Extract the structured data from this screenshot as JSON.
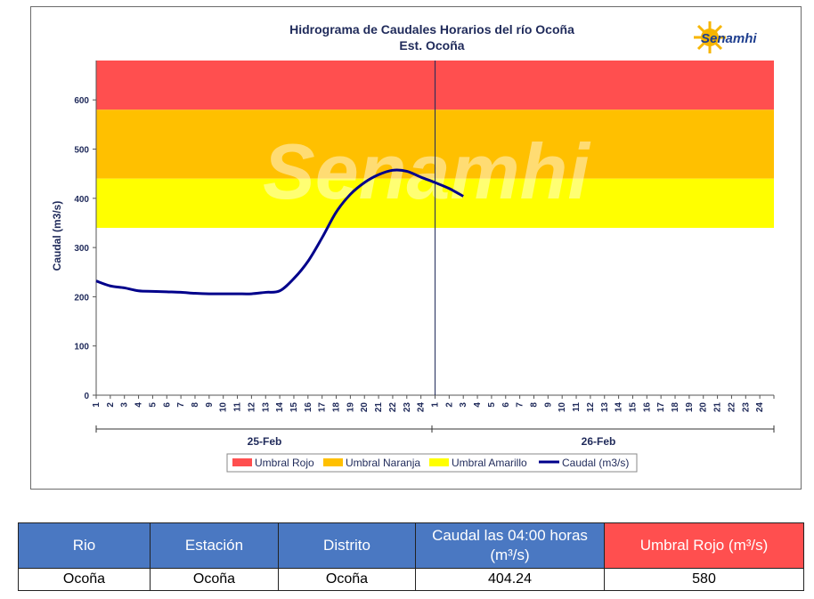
{
  "chart_data": {
    "type": "line",
    "title": "Hidrograma de Caudales Horarios del río Ocoña",
    "subtitle": "Est. Ocoña",
    "ylabel": "Caudal  (m3/s)",
    "ylim": [
      0,
      680
    ],
    "yticks": [
      0,
      100,
      200,
      300,
      400,
      500,
      600
    ],
    "xticks": [
      "1",
      "2",
      "3",
      "4",
      "5",
      "6",
      "7",
      "8",
      "9",
      "10",
      "11",
      "12",
      "13",
      "14",
      "15",
      "16",
      "17",
      "18",
      "19",
      "20",
      "21",
      "22",
      "23",
      "24",
      "1",
      "2",
      "3",
      "4",
      "5",
      "6",
      "7",
      "8",
      "9",
      "10",
      "11",
      "12",
      "13",
      "14",
      "15",
      "16",
      "17",
      "18",
      "19",
      "20",
      "21",
      "22",
      "23",
      "24"
    ],
    "days": [
      "25-Feb",
      "26-Feb"
    ],
    "thresholds": [
      {
        "name": "Umbral Rojo",
        "from": 580,
        "to": 680,
        "color": "#ff4f4f"
      },
      {
        "name": "Umbral Naranja",
        "from": 440,
        "to": 580,
        "color": "#ffc000"
      },
      {
        "name": "Umbral Amarillo",
        "from": 340,
        "to": 440,
        "color": "#ffff00"
      }
    ],
    "series": [
      {
        "name": "Caudal (m3/s)",
        "color": "#00008b",
        "values": [
          232,
          222,
          218,
          212,
          211,
          210,
          209,
          207,
          206,
          206,
          206,
          206,
          209,
          212,
          237,
          272,
          320,
          372,
          408,
          432,
          448,
          457,
          455,
          443,
          432,
          420,
          404.24
        ],
        "x": [
          1,
          2,
          3,
          4,
          5,
          6,
          7,
          8,
          9,
          10,
          11,
          12,
          13,
          14,
          15,
          16,
          17,
          18,
          19,
          20,
          21,
          22,
          23,
          24,
          25,
          26,
          27
        ]
      }
    ],
    "legend": [
      "Umbral Rojo",
      "Umbral Naranja",
      "Umbral Amarillo",
      "Caudal (m3/s)"
    ],
    "legend_position": "bottom",
    "grid": false
  },
  "logo": {
    "text": "Senamhi"
  },
  "watermark": "Senamhi",
  "table": {
    "headers": [
      "Rio",
      "Estación",
      "Distrito",
      "Caudal las 04:00 horas (m³/s)",
      "Umbral Rojo (m³/s)"
    ],
    "header_colors": [
      "#4a78c2",
      "#4a78c2",
      "#4a78c2",
      "#4a78c2",
      "#ff4f4f"
    ],
    "row": [
      "Ocoña",
      "Ocoña",
      "Ocoña",
      "404.24",
      "580"
    ]
  }
}
